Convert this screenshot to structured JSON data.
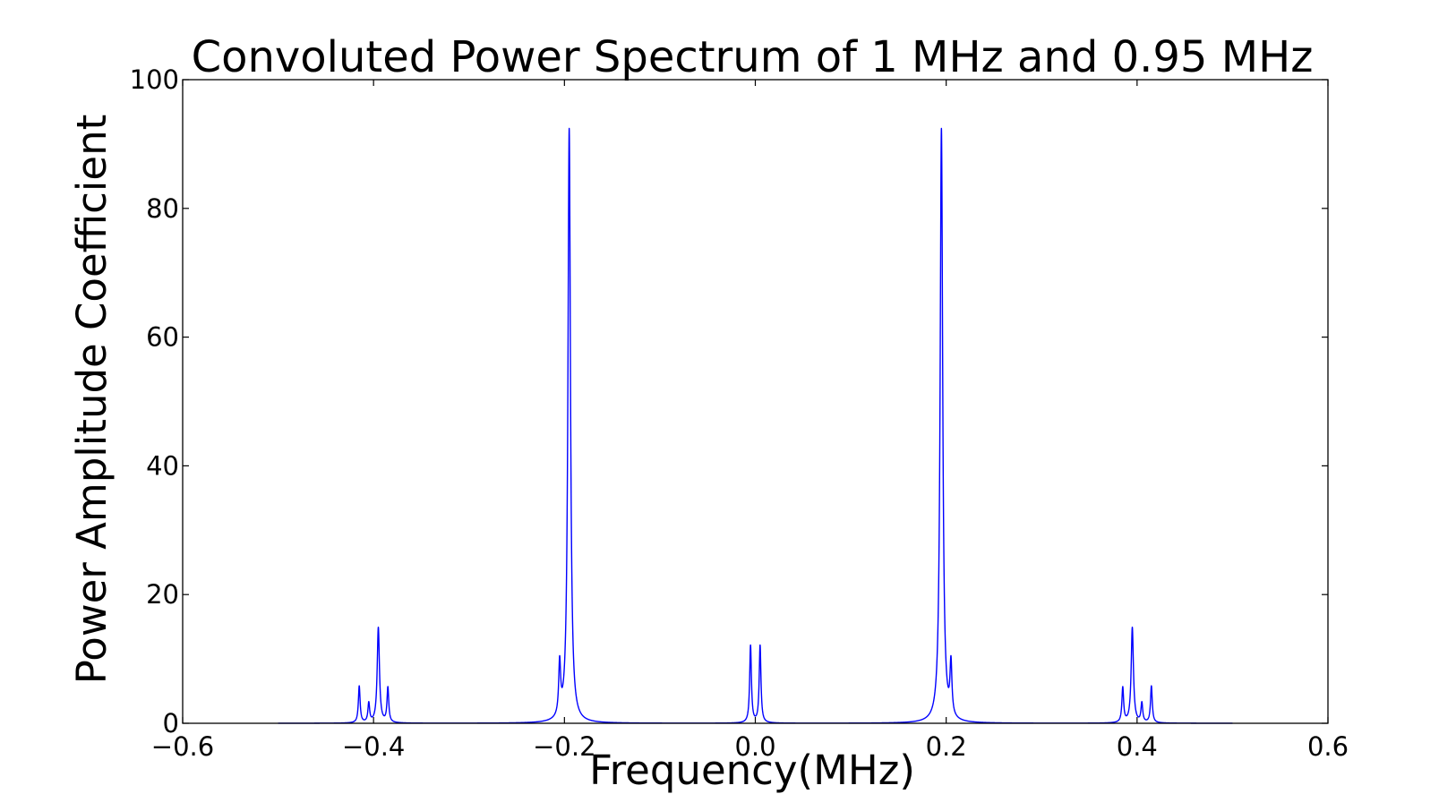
{
  "chart_data": {
    "type": "line",
    "title": "Convoluted Power Spectrum of 1 MHz and 0.95 MHz",
    "xlabel": "Frequency(MHz)",
    "ylabel": "Power Amplitude Coefficient",
    "xlim": [
      -0.6,
      0.6
    ],
    "ylim": [
      0,
      100
    ],
    "x_ticks": [
      -0.6,
      -0.4,
      -0.2,
      0.0,
      0.2,
      0.4,
      0.6
    ],
    "x_tick_labels": [
      "−0.6",
      "−0.4",
      "−0.2",
      "0.0",
      "0.2",
      "0.4",
      "0.6"
    ],
    "y_ticks": [
      0,
      20,
      40,
      60,
      80,
      100
    ],
    "y_tick_labels": [
      "0",
      "20",
      "40",
      "60",
      "80",
      "100"
    ],
    "grid": false,
    "line_color": "#0000ff",
    "series": [
      {
        "x_range": [
          -0.5,
          0.5
        ],
        "peaks": [
          {
            "x": -0.415,
            "y": 5.7,
            "w": 0.0011
          },
          {
            "x": -0.405,
            "y": 3.0,
            "w": 0.0011
          },
          {
            "x": -0.395,
            "y": 14.8,
            "w": 0.0014
          },
          {
            "x": -0.385,
            "y": 5.4,
            "w": 0.0011
          },
          {
            "x": -0.205,
            "y": 8.2,
            "w": 0.0012
          },
          {
            "x": -0.195,
            "y": 92.3,
            "w": 0.0016
          },
          {
            "x": -0.005,
            "y": 12.0,
            "w": 0.0011
          },
          {
            "x": 0.005,
            "y": 12.0,
            "w": 0.0011
          },
          {
            "x": 0.195,
            "y": 92.3,
            "w": 0.0016
          },
          {
            "x": 0.205,
            "y": 8.2,
            "w": 0.0012
          },
          {
            "x": 0.385,
            "y": 5.4,
            "w": 0.0011
          },
          {
            "x": 0.395,
            "y": 14.8,
            "w": 0.0014
          },
          {
            "x": 0.405,
            "y": 3.0,
            "w": 0.0011
          },
          {
            "x": 0.415,
            "y": 5.7,
            "w": 0.0011
          }
        ]
      }
    ]
  }
}
